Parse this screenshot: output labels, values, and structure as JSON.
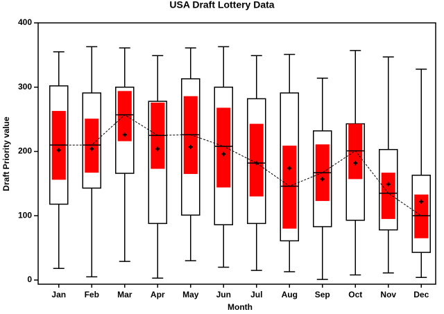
{
  "chart_data": {
    "type": "box",
    "title": "USA Draft Lottery Data",
    "x_label": "Month",
    "y_label": "Draft Priority value",
    "categories": [
      "Jan",
      "Feb",
      "Mar",
      "Apr",
      "May",
      "Jun",
      "Jul",
      "Aug",
      "Sep",
      "Oct",
      "Nov",
      "Dec"
    ],
    "whisker_low": [
      18,
      5,
      29,
      3,
      30,
      20,
      15,
      13,
      1,
      8,
      11,
      4
    ],
    "q1": [
      118,
      143,
      166,
      88,
      101,
      86,
      88,
      61,
      83,
      93,
      78,
      43
    ],
    "median": [
      210,
      210,
      257,
      225,
      226,
      208,
      182,
      146,
      167,
      201,
      135,
      100
    ],
    "q3": [
      302,
      291,
      300,
      278,
      313,
      300,
      282,
      291,
      232,
      243,
      203,
      163
    ],
    "whisker_high": [
      355,
      363,
      361,
      349,
      361,
      363,
      349,
      351,
      314,
      357,
      347,
      328
    ],
    "mean": [
      202,
      204,
      226,
      204,
      207,
      196,
      182,
      174,
      157,
      182,
      149,
      122
    ],
    "ci_low": [
      156,
      167,
      216,
      173,
      165,
      144,
      130,
      80,
      123,
      157,
      95,
      65
    ],
    "ci_high": [
      263,
      251,
      294,
      276,
      286,
      268,
      243,
      209,
      211,
      243,
      167,
      133
    ],
    "box_color": "#ffffff",
    "ci_color": "#ff0000",
    "line_color": "#000000",
    "ylim": [
      0,
      400
    ],
    "yticks": [
      0,
      100,
      200,
      300,
      400
    ]
  }
}
